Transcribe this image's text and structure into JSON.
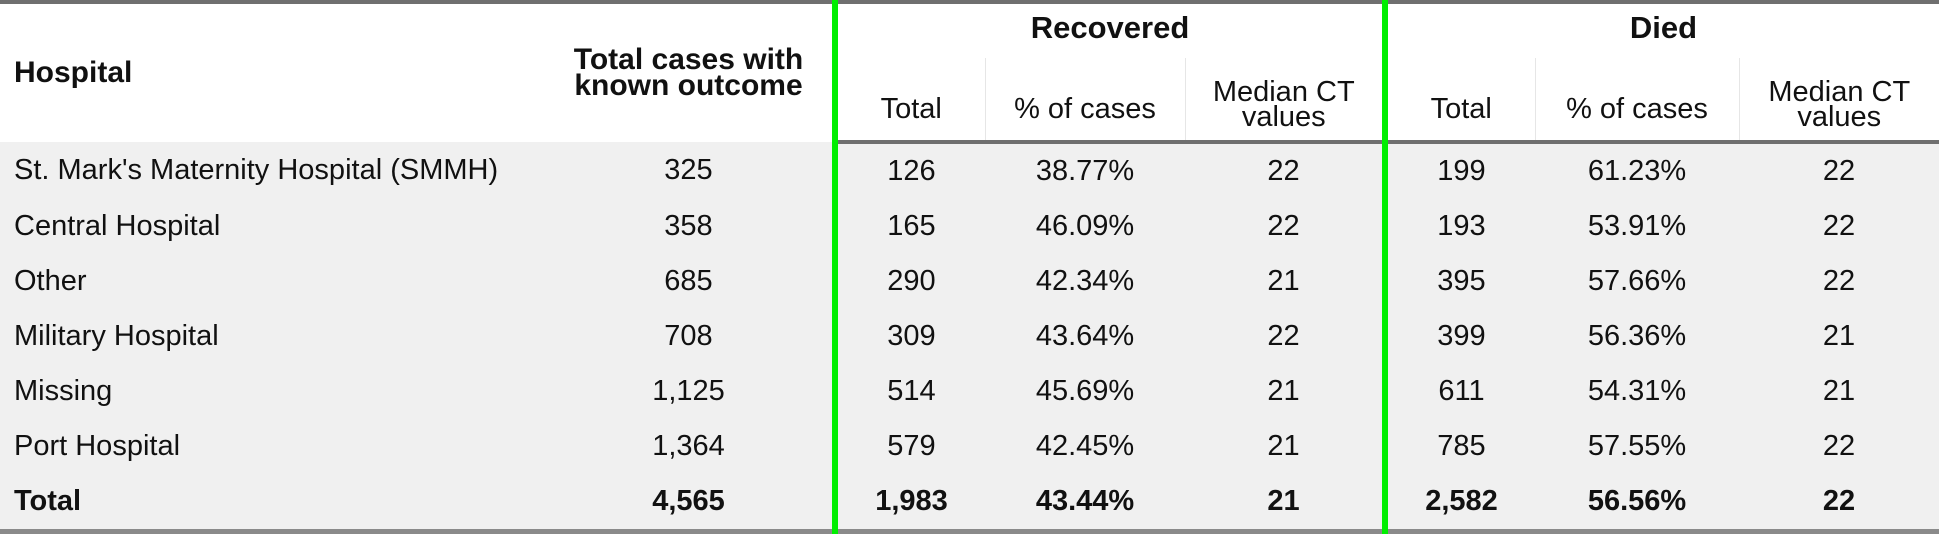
{
  "table": {
    "headers": {
      "hospital": "Hospital",
      "total_cases_line1": "Total cases with",
      "total_cases_line2": "known outcome",
      "recovered": "Recovered",
      "died": "Died",
      "sub_total": "Total",
      "sub_pct": "% of cases",
      "sub_median_line1": "Median CT",
      "sub_median_line2": "values"
    },
    "rows": [
      {
        "hospital": "St. Mark's Maternity Hospital (SMMH)",
        "total": "325",
        "rec_total": "126",
        "rec_pct": "38.77%",
        "rec_median": "22",
        "died_total": "199",
        "died_pct": "61.23%",
        "died_median": "22"
      },
      {
        "hospital": "Central Hospital",
        "total": "358",
        "rec_total": "165",
        "rec_pct": "46.09%",
        "rec_median": "22",
        "died_total": "193",
        "died_pct": "53.91%",
        "died_median": "22"
      },
      {
        "hospital": "Other",
        "total": "685",
        "rec_total": "290",
        "rec_pct": "42.34%",
        "rec_median": "21",
        "died_total": "395",
        "died_pct": "57.66%",
        "died_median": "22"
      },
      {
        "hospital": "Military Hospital",
        "total": "708",
        "rec_total": "309",
        "rec_pct": "43.64%",
        "rec_median": "22",
        "died_total": "399",
        "died_pct": "56.36%",
        "died_median": "21"
      },
      {
        "hospital": "Missing",
        "total": "1,125",
        "rec_total": "514",
        "rec_pct": "45.69%",
        "rec_median": "21",
        "died_total": "611",
        "died_pct": "54.31%",
        "died_median": "21"
      },
      {
        "hospital": "Port Hospital",
        "total": "1,364",
        "rec_total": "579",
        "rec_pct": "42.45%",
        "rec_median": "21",
        "died_total": "785",
        "died_pct": "57.55%",
        "died_median": "22"
      }
    ],
    "total_row": {
      "hospital": "Total",
      "total": "4,565",
      "rec_total": "1,983",
      "rec_pct": "43.44%",
      "rec_median": "21",
      "died_total": "2,582",
      "died_pct": "56.56%",
      "died_median": "22"
    }
  },
  "colors": {
    "group_divider": "#00ee00",
    "body_background": "#f0f0f0",
    "rule": "#6f6f6f"
  }
}
